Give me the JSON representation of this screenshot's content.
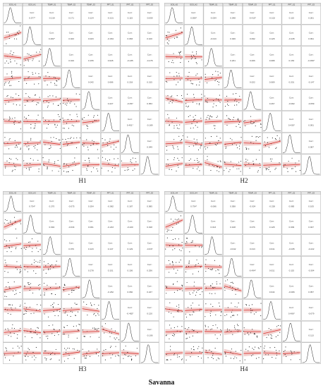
{
  "figure_title": "Savanna",
  "chart_data": [
    {
      "type": "scatter-matrix",
      "label": "H1",
      "variables": [
        "SOS_H1",
        "EOS_H1",
        "TEMP_S1",
        "TEMP_S2",
        "TEMP_S3",
        "PPT_S1",
        "PPT_S2",
        "PPT_S3"
      ],
      "corr": [
        0.577,
        -0.219,
        0.171,
        0.124,
        -0.101,
        0.115,
        -0.059,
        0.482,
        0.043,
        0.023,
        -0.034,
        0.083,
        0.1,
        0.019,
        0.155,
        0.028,
        -0.235,
        -0.278,
        0.042,
        0.086,
        0.218,
        0.315,
        0.227,
        -0.057,
        0.053,
        0.451,
        -0.189,
        0.049,
        -0.093,
        0.137,
        0.006,
        0.151,
        -0.047,
        -0.244,
        0.224,
        0.218
      ]
    },
    {
      "type": "scatter-matrix",
      "label": "H2",
      "variables": [
        "SOS_H2",
        "EOS_H2",
        "TEMP_S1",
        "TEMP_S2",
        "TEMP_S3",
        "PPT_S1",
        "PPT_S2",
        "PPT_S3"
      ],
      "corr": [
        0.559,
        -0.054,
        0.048,
        -0.41,
        -0.102,
        0.115,
        0.281,
        -0.013,
        0.026,
        0.092,
        0.128,
        -0.245,
        0.091,
        0.201,
        0.006,
        0.088,
        0.153,
        -0.459,
        0.022,
        0.089,
        0.201,
        -0.147,
        0.267,
        -0.062,
        -0.059,
        0.43,
        0.091,
        0.087,
        0.244,
        0.265,
        -0.165,
        0.208,
        0.001,
        -0.269,
        0.224,
        -0.233
      ]
    },
    {
      "type": "scatter-matrix",
      "label": "H3",
      "variables": [
        "SOS_H3",
        "EOS_H3",
        "TEMP_S1",
        "TEMP_S2",
        "TEMP_S3",
        "PPT_S1",
        "PPT_S2",
        "PPT_S3"
      ],
      "corr": [
        0.754,
        0.27,
        -0.075,
        0.354,
        -0.082,
        0.187,
        0.085,
        0.094,
        -0.034,
        0.061,
        -0.243,
        -0.22,
        0.018,
        0.076,
        0.123,
        0.147,
        0.129,
        -0.037,
        0.278,
        0.151,
        0.156,
        0.256,
        -0.262,
        0.06,
        0.227,
        -0.482,
        0.12,
        -0.106,
        0.053,
        0.208,
        -0.177,
        0.145,
        -0.465,
        0.288,
        0.012,
        -0.179
      ]
    },
    {
      "type": "scatter-matrix",
      "label": "H4",
      "variables": [
        "SOS_H4",
        "EOS_H4",
        "TEMP_S1",
        "TEMP_S2",
        "TEMP_S3",
        "PPT_S1",
        "PPT_S2",
        "PPT_S3"
      ],
      "corr": [
        0.754,
        -0.066,
        0.058,
        -0.024,
        -0.228,
        0.085,
        0.105,
        0.013,
        0.108,
        0.076,
        0.128,
        0.009,
        0.027,
        -0.042,
        0.013,
        0.041,
        -0.035,
        -0.222,
        -0.494,
        0.011,
        0.115,
        -0.304,
        0.044,
        -0.006,
        0.057,
        0.406,
        -0.079,
        0.113,
        0.188,
        0.457,
        -0.236,
        0.004,
        0.219,
        0.116,
        0.105,
        -0.187
      ]
    }
  ]
}
